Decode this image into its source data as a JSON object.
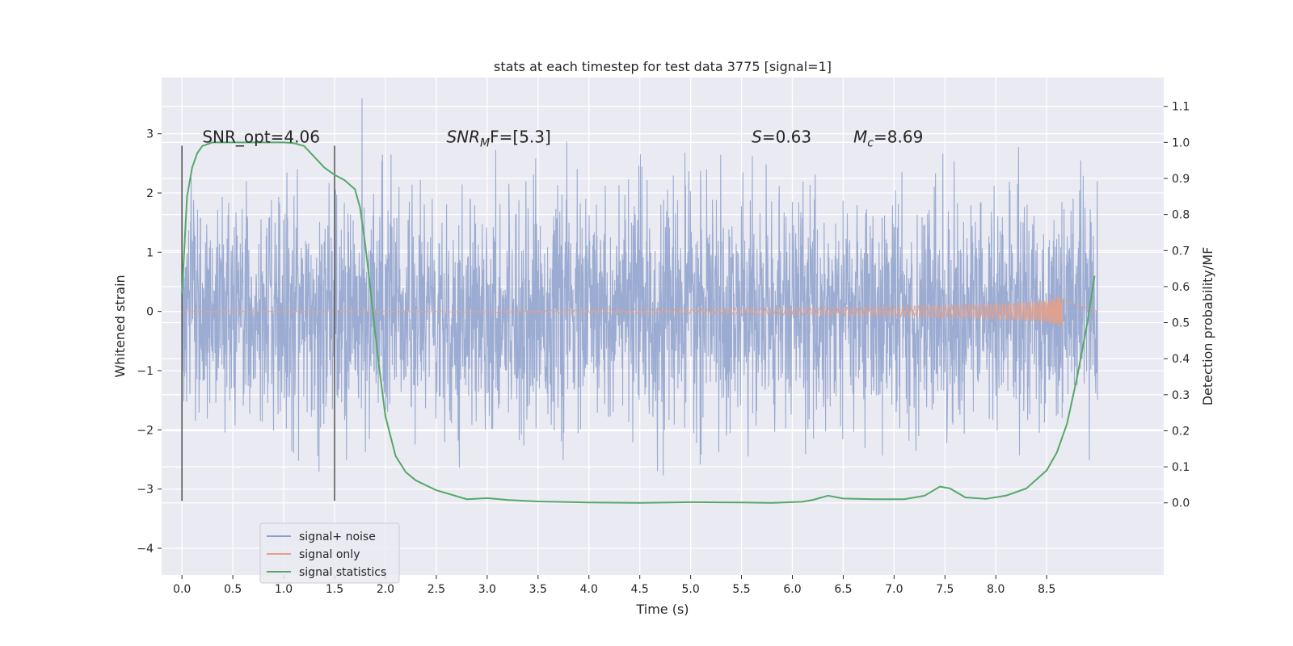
{
  "chart_data": {
    "type": "line",
    "title": "stats at each timestep for test data 3775 [signal=1]",
    "xlabel": "Time (s)",
    "ylabel_left": "Whitened strain",
    "ylabel_right": "Detection probability/MF",
    "xlim": [
      -0.2,
      9.65
    ],
    "ylim_left": [
      -4.45,
      3.95
    ],
    "ylim_right": [
      -0.2,
      1.18
    ],
    "x_ticks": [
      0.0,
      0.5,
      1.0,
      1.5,
      2.0,
      2.5,
      3.0,
      3.5,
      4.0,
      4.5,
      5.0,
      5.5,
      6.0,
      6.5,
      7.0,
      7.5,
      8.0,
      8.5
    ],
    "x_tick_labels": [
      "0.0",
      "0.5",
      "1.0",
      "1.5",
      "2.0",
      "2.5",
      "3.0",
      "3.5",
      "4.0",
      "4.5",
      "5.0",
      "5.5",
      "6.0",
      "6.5",
      "7.0",
      "7.5",
      "8.0",
      "8.5"
    ],
    "y_left_ticks": [
      3,
      2,
      1,
      0,
      -1,
      -2,
      -3,
      -4
    ],
    "y_left_tick_labels": [
      "3",
      "2",
      "1",
      "0",
      "−1",
      "−2",
      "−3",
      "−4"
    ],
    "y_right_ticks": [
      1.1,
      1.0,
      0.9,
      0.8,
      0.7,
      0.6,
      0.5,
      0.4,
      0.3,
      0.2,
      0.1,
      0.0
    ],
    "y_right_tick_labels": [
      "1.1",
      "1.0",
      "0.9",
      "0.8",
      "0.7",
      "0.6",
      "0.5",
      "0.4",
      "0.3",
      "0.2",
      "0.1",
      "0.0"
    ],
    "grid": true,
    "legend_position": "lower-left",
    "series": [
      {
        "name": "signal+ noise",
        "color": "#8da0cb",
        "axis": "left",
        "x_range": [
          0.0,
          9.0
        ],
        "envelope": [
          -1.8,
          2.2
        ]
      },
      {
        "name": "signal only",
        "color": "#e5a088",
        "axis": "left",
        "x_range": [
          0.0,
          8.67
        ],
        "peak_amplitude": 0.55
      },
      {
        "name": "signal statistics",
        "color": "#55a868",
        "axis": "right",
        "x": [
          0.0,
          0.05,
          0.1,
          0.15,
          0.2,
          0.3,
          0.5,
          0.8,
          1.0,
          1.1,
          1.2,
          1.3,
          1.4,
          1.5,
          1.6,
          1.7,
          1.75,
          1.8,
          1.85,
          1.9,
          1.95,
          2.0,
          2.1,
          2.2,
          2.3,
          2.5,
          2.8,
          3.0,
          3.2,
          3.5,
          4.0,
          4.5,
          5.0,
          5.5,
          5.8,
          6.1,
          6.2,
          6.35,
          6.5,
          6.8,
          7.1,
          7.3,
          7.45,
          7.55,
          7.7,
          7.9,
          8.1,
          8.3,
          8.5,
          8.6,
          8.7,
          8.8,
          8.9,
          8.97
        ],
        "y": [
          0.58,
          0.85,
          0.93,
          0.97,
          0.99,
          1.0,
          1.0,
          1.0,
          1.0,
          0.998,
          0.99,
          0.96,
          0.93,
          0.91,
          0.895,
          0.87,
          0.82,
          0.72,
          0.6,
          0.47,
          0.35,
          0.24,
          0.13,
          0.085,
          0.062,
          0.035,
          0.01,
          0.013,
          0.008,
          0.004,
          0.001,
          0.0,
          0.002,
          0.001,
          0.0,
          0.003,
          0.008,
          0.02,
          0.012,
          0.01,
          0.01,
          0.02,
          0.045,
          0.04,
          0.015,
          0.011,
          0.02,
          0.04,
          0.09,
          0.14,
          0.22,
          0.35,
          0.5,
          0.63
        ]
      }
    ],
    "annotations": [
      {
        "text": "SNR_opt=4.06",
        "x": 0.2,
        "y_right": 1.0
      },
      {
        "text_main": "SNR",
        "text_sub": "M",
        "text_rest": "F=[5.3]",
        "x": 2.6,
        "y_right": 1.0
      },
      {
        "text_main": "S",
        "text_sub": "",
        "text_rest": "=0.63",
        "x": 5.6,
        "y_right": 1.0
      },
      {
        "text_main": "M",
        "text_sub": "c",
        "text_rest": "=8.69",
        "x": 6.6,
        "y_right": 1.0
      }
    ],
    "vertical_lines": [
      {
        "x": 0.0,
        "y_from": -3.2,
        "y_to": 2.8
      },
      {
        "x": 1.5,
        "y_from": -3.2,
        "y_to": 2.8
      }
    ]
  }
}
